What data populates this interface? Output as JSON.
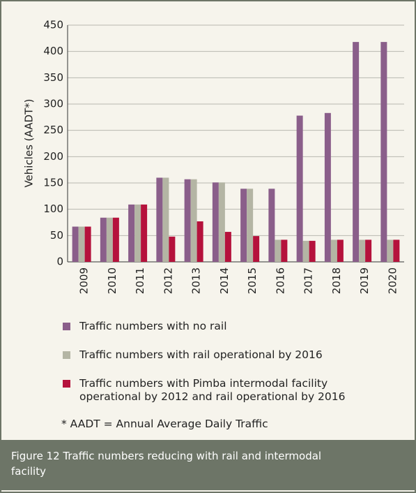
{
  "chart_data": {
    "type": "bar",
    "y_label": "Vehicles (AADT*)",
    "categories": [
      "2009",
      "2010",
      "2011",
      "2012",
      "2013",
      "2014",
      "2015",
      "2016",
      "2017",
      "2018",
      "2019",
      "2020"
    ],
    "series": [
      {
        "name": "Traffic numbers with no rail",
        "color": "#8a5e8a",
        "values": [
          67,
          84,
          109,
          160,
          157,
          151,
          139,
          139,
          278,
          283,
          418,
          418
        ]
      },
      {
        "name": "Traffic numbers with rail operational by 2016",
        "color": "#b4b5a4",
        "values": [
          67,
          84,
          109,
          160,
          157,
          151,
          139,
          42,
          40,
          42,
          42,
          42
        ]
      },
      {
        "name": "Traffic numbers with Pimba intermodal facility operational by 2012 and rail operational by 2016",
        "color": "#b5123c",
        "values": [
          67,
          84,
          109,
          48,
          77,
          57,
          49,
          42,
          40,
          42,
          42,
          42
        ]
      }
    ],
    "ylim": [
      0,
      450
    ],
    "yticks": [
      0,
      50,
      100,
      150,
      200,
      250,
      300,
      350,
      400,
      450
    ],
    "grid": true,
    "footnote": "* AADT = Annual Average Daily Traffic",
    "caption": "Figure 12  Traffic numbers reducing with rail and intermodal facility"
  }
}
